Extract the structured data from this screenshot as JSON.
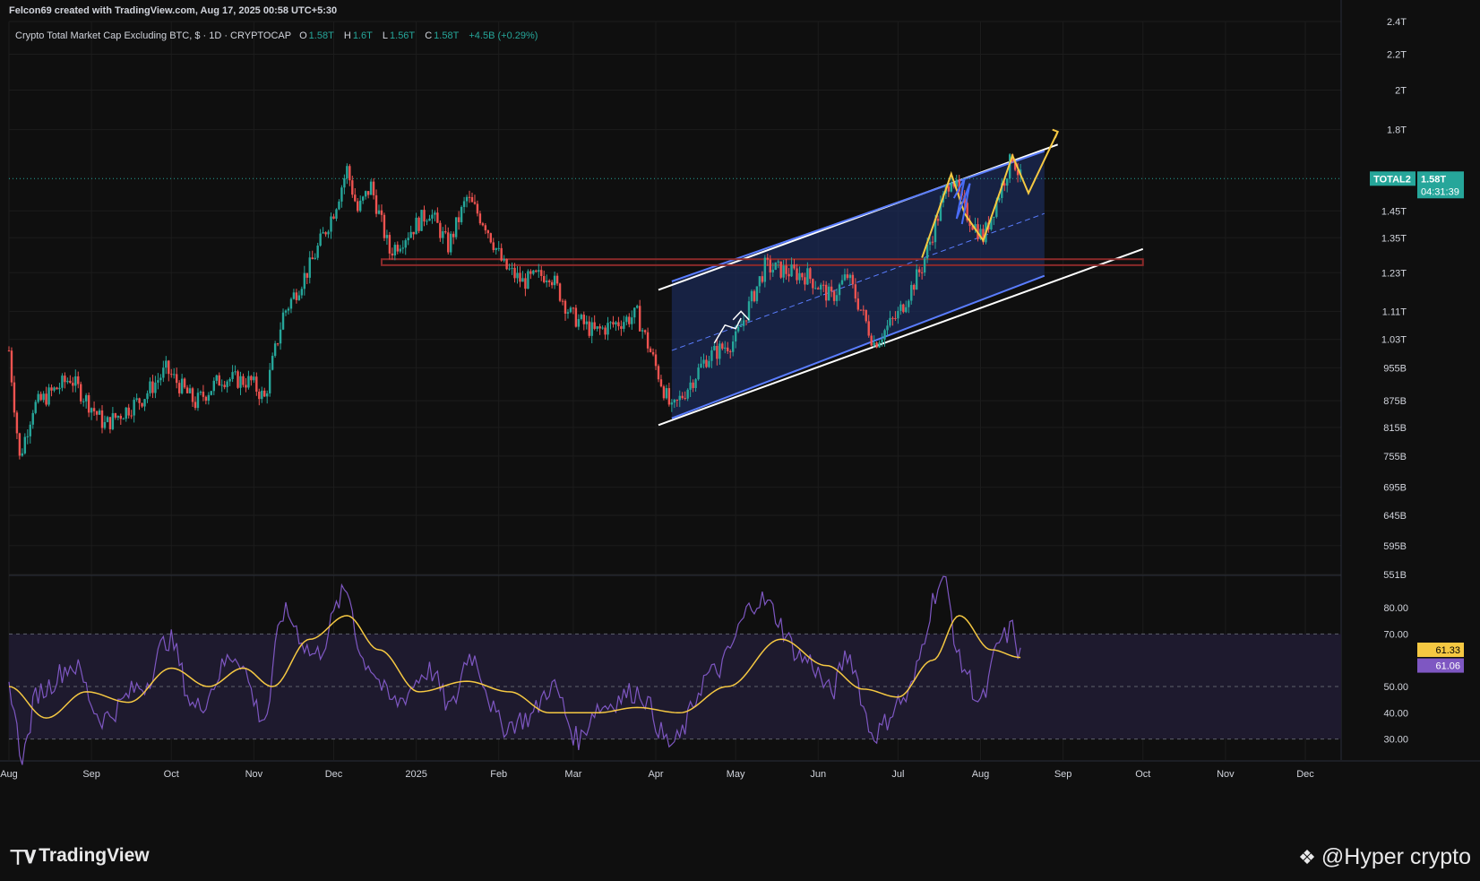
{
  "header": {
    "attribution": "Felcon69 created with TradingView.com, Aug 17, 2025 00:58 UTC+5:30"
  },
  "legend": {
    "symbol_desc": "Crypto Total Market Cap Excluding BTC, $ · 1D · CRYPTOCAP",
    "open_label": "O",
    "open": "1.58T",
    "high_label": "H",
    "high": "1.6T",
    "low_label": "L",
    "low": "1.56T",
    "close_label": "C",
    "close": "1.58T",
    "change": "+4.5B (+0.29%)"
  },
  "price_tag": {
    "symbol": "TOTAL2",
    "price": "1.58T",
    "countdown": "04:31:39"
  },
  "rsi_tags": {
    "rsi": "61.33",
    "ma": "61.06"
  },
  "footer": {
    "brand": "TradingView",
    "watermark": "@Hyper crypto"
  },
  "colors": {
    "up": "#26a69a",
    "down": "#ef5350",
    "rsi_line": "#7e57c2",
    "rsi_ma": "#f5c842",
    "channel_fill": "#1b2a55",
    "channel_line": "#ffffff",
    "yellow_path": "#f5c842",
    "support_zone": "#8b2a2a",
    "rsi_band": "#1e1a2e"
  },
  "chart_data": [
    {
      "type": "candlestick",
      "title": "Crypto Total Market Cap Excluding BTC, $ · 1D · CRYPTOCAP",
      "scale": "log",
      "ylim": [
        "551B",
        "2.4T"
      ],
      "y_ticks": [
        "2.4T",
        "2.2T",
        "2T",
        "1.8T",
        "1.58T",
        "1.45T",
        "1.35T",
        "1.23T",
        "1.11T",
        "1.03T",
        "955B",
        "875B",
        "815B",
        "755B",
        "695B",
        "645B",
        "595B",
        "551B"
      ],
      "x_ticks": [
        "Aug",
        "Sep",
        "Oct",
        "Nov",
        "Dec",
        "2025",
        "Feb",
        "Mar",
        "Apr",
        "May",
        "Jun",
        "Jul",
        "Aug",
        "Sep",
        "Oct",
        "Nov",
        "Dec"
      ],
      "anchors": [
        {
          "date": "2024-08-01",
          "value": 1.0
        },
        {
          "date": "2024-08-05",
          "value": 0.75
        },
        {
          "date": "2024-08-10",
          "value": 0.86
        },
        {
          "date": "2024-08-24",
          "value": 0.93
        },
        {
          "date": "2024-09-06",
          "value": 0.82
        },
        {
          "date": "2024-09-20",
          "value": 0.88
        },
        {
          "date": "2024-09-29",
          "value": 0.95
        },
        {
          "date": "2024-10-10",
          "value": 0.87
        },
        {
          "date": "2024-10-20",
          "value": 0.93
        },
        {
          "date": "2024-10-31",
          "value": 0.92
        },
        {
          "date": "2024-11-05",
          "value": 0.88
        },
        {
          "date": "2024-11-12",
          "value": 1.1
        },
        {
          "date": "2024-11-22",
          "value": 1.25
        },
        {
          "date": "2024-12-01",
          "value": 1.45
        },
        {
          "date": "2024-12-06",
          "value": 1.62
        },
        {
          "date": "2024-12-10",
          "value": 1.45
        },
        {
          "date": "2024-12-15",
          "value": 1.55
        },
        {
          "date": "2024-12-22",
          "value": 1.3
        },
        {
          "date": "2025-01-06",
          "value": 1.45
        },
        {
          "date": "2025-01-13",
          "value": 1.32
        },
        {
          "date": "2025-01-20",
          "value": 1.5
        },
        {
          "date": "2025-01-27",
          "value": 1.4
        },
        {
          "date": "2025-02-03",
          "value": 1.25
        },
        {
          "date": "2025-02-10",
          "value": 1.2
        },
        {
          "date": "2025-02-20",
          "value": 1.23
        },
        {
          "date": "2025-02-28",
          "value": 1.1
        },
        {
          "date": "2025-03-09",
          "value": 1.05
        },
        {
          "date": "2025-03-25",
          "value": 1.1
        },
        {
          "date": "2025-04-07",
          "value": 0.85
        },
        {
          "date": "2025-04-20",
          "value": 0.98
        },
        {
          "date": "2025-05-01",
          "value": 1.03
        },
        {
          "date": "2025-05-12",
          "value": 1.25
        },
        {
          "date": "2025-05-28",
          "value": 1.22
        },
        {
          "date": "2025-06-06",
          "value": 1.15
        },
        {
          "date": "2025-06-12",
          "value": 1.22
        },
        {
          "date": "2025-06-22",
          "value": 1.02
        },
        {
          "date": "2025-07-01",
          "value": 1.1
        },
        {
          "date": "2025-07-10",
          "value": 1.25
        },
        {
          "date": "2025-07-21",
          "value": 1.6
        },
        {
          "date": "2025-07-26",
          "value": 1.45
        },
        {
          "date": "2025-08-02",
          "value": 1.35
        },
        {
          "date": "2025-08-09",
          "value": 1.55
        },
        {
          "date": "2025-08-13",
          "value": 1.68
        },
        {
          "date": "2025-08-16",
          "value": 1.58
        }
      ],
      "value_unit": "T"
    },
    {
      "type": "line",
      "title": "RSI",
      "ylim": [
        22,
        92
      ],
      "y_ticks": [
        "80.00",
        "70.00",
        "61.33",
        "61.06",
        "50.00",
        "40.00",
        "30.00"
      ],
      "band": [
        30,
        70
      ],
      "series": [
        {
          "name": "RSI",
          "anchors": [
            {
              "date": "2024-08-01",
              "value": 50
            },
            {
              "date": "2024-08-06",
              "value": 24
            },
            {
              "date": "2024-08-12",
              "value": 48
            },
            {
              "date": "2024-08-25",
              "value": 58
            },
            {
              "date": "2024-09-05",
              "value": 38
            },
            {
              "date": "2024-09-20",
              "value": 50
            },
            {
              "date": "2024-09-30",
              "value": 68
            },
            {
              "date": "2024-10-10",
              "value": 42
            },
            {
              "date": "2024-10-25",
              "value": 62
            },
            {
              "date": "2024-11-05",
              "value": 38
            },
            {
              "date": "2024-11-12",
              "value": 78
            },
            {
              "date": "2024-11-24",
              "value": 62
            },
            {
              "date": "2024-12-06",
              "value": 86
            },
            {
              "date": "2024-12-12",
              "value": 60
            },
            {
              "date": "2024-12-24",
              "value": 44
            },
            {
              "date": "2025-01-06",
              "value": 56
            },
            {
              "date": "2025-01-14",
              "value": 42
            },
            {
              "date": "2025-01-21",
              "value": 62
            },
            {
              "date": "2025-02-03",
              "value": 35
            },
            {
              "date": "2025-02-12",
              "value": 38
            },
            {
              "date": "2025-02-21",
              "value": 50
            },
            {
              "date": "2025-03-03",
              "value": 30
            },
            {
              "date": "2025-03-10",
              "value": 42
            },
            {
              "date": "2025-03-25",
              "value": 48
            },
            {
              "date": "2025-04-07",
              "value": 28
            },
            {
              "date": "2025-04-22",
              "value": 55
            },
            {
              "date": "2025-05-10",
              "value": 83
            },
            {
              "date": "2025-05-28",
              "value": 60
            },
            {
              "date": "2025-06-06",
              "value": 48
            },
            {
              "date": "2025-06-12",
              "value": 62
            },
            {
              "date": "2025-06-22",
              "value": 32
            },
            {
              "date": "2025-07-03",
              "value": 45
            },
            {
              "date": "2025-07-18",
              "value": 90
            },
            {
              "date": "2025-07-25",
              "value": 58
            },
            {
              "date": "2025-08-01",
              "value": 44
            },
            {
              "date": "2025-08-09",
              "value": 68
            },
            {
              "date": "2025-08-13",
              "value": 72
            },
            {
              "date": "2025-08-16",
              "value": 61.33
            }
          ]
        },
        {
          "name": "RSI-based MA",
          "anchors": [
            {
              "date": "2024-08-01",
              "value": 50
            },
            {
              "date": "2024-08-15",
              "value": 38
            },
            {
              "date": "2024-08-30",
              "value": 48
            },
            {
              "date": "2024-09-15",
              "value": 44
            },
            {
              "date": "2024-10-01",
              "value": 57
            },
            {
              "date": "2024-10-15",
              "value": 50
            },
            {
              "date": "2024-10-28",
              "value": 57
            },
            {
              "date": "2024-11-08",
              "value": 50
            },
            {
              "date": "2024-11-22",
              "value": 68
            },
            {
              "date": "2024-12-06",
              "value": 77
            },
            {
              "date": "2024-12-18",
              "value": 64
            },
            {
              "date": "2025-01-02",
              "value": 48
            },
            {
              "date": "2025-01-20",
              "value": 52
            },
            {
              "date": "2025-02-05",
              "value": 48
            },
            {
              "date": "2025-02-20",
              "value": 40
            },
            {
              "date": "2025-03-10",
              "value": 40
            },
            {
              "date": "2025-03-25",
              "value": 42
            },
            {
              "date": "2025-04-10",
              "value": 40
            },
            {
              "date": "2025-04-28",
              "value": 50
            },
            {
              "date": "2025-05-18",
              "value": 68
            },
            {
              "date": "2025-06-04",
              "value": 58
            },
            {
              "date": "2025-06-18",
              "value": 49
            },
            {
              "date": "2025-07-01",
              "value": 46
            },
            {
              "date": "2025-07-14",
              "value": 60
            },
            {
              "date": "2025-07-24",
              "value": 77
            },
            {
              "date": "2025-08-05",
              "value": 64
            },
            {
              "date": "2025-08-16",
              "value": 61.06
            }
          ]
        }
      ]
    }
  ]
}
